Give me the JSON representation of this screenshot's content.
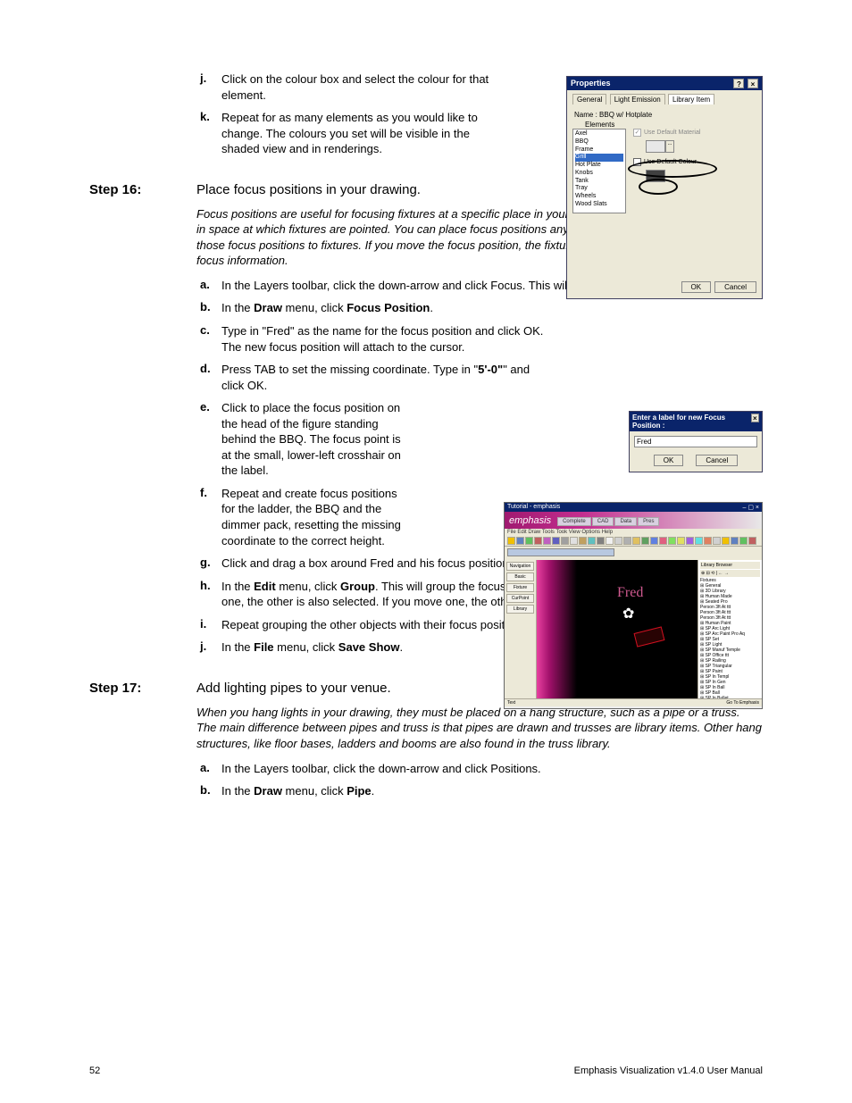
{
  "top_list": [
    {
      "marker": "j.",
      "parts": [
        "Click on the colour box and select the colour for that element."
      ]
    },
    {
      "marker": "k.",
      "parts": [
        "Repeat for as many elements as you would like to change. The colours you set will be visible in the shaded view and in renderings."
      ]
    }
  ],
  "step16": {
    "label": "Step 16:",
    "title": "Place focus positions in your drawing.",
    "intro": "Focus positions are useful for focusing fixtures at a specific place in your plot. A focus position defines a point in space at which fixtures are pointed. You can place focus positions anywhere in your drawing, and assign those focus positions to fixtures. If you move the focus position, the fixtures will automatically update their focus information.",
    "items": [
      {
        "marker": "a.",
        "html": "In the Layers toolbar, click the down-arrow and click Focus. This will set Focus as the current layer."
      },
      {
        "marker": "b.",
        "html": "In the <b>Draw</b> menu, click <b>Focus Position</b>."
      },
      {
        "marker": "c.",
        "html": "Type in \"Fred\" as the name for the focus position and click OK. The new focus position will attach to the cursor."
      },
      {
        "marker": "d.",
        "html": "Press TAB to set the missing coordinate. Type in \"<b>5'-0\"</b>\" and click OK."
      },
      {
        "marker": "e.",
        "html": "Click to place the focus position on the head of the figure standing behind the BBQ. The focus point is at the small, lower-left crosshair on the label."
      },
      {
        "marker": "f.",
        "html": "Repeat and create focus positions for the ladder, the BBQ and the dimmer pack, resetting the missing coordinate to the correct height."
      },
      {
        "marker": "g.",
        "html": "Click and drag a box around Fred and his focus position to select them together."
      },
      {
        "marker": "h.",
        "html": "In the <b>Edit</b> menu, click <b>Group</b>. This will group the focus position and the object together. If you select one, the other is also selected. If you move one, the other will move with it."
      },
      {
        "marker": "i.",
        "html": "Repeat grouping the other objects with their focus positions."
      },
      {
        "marker": "j.",
        "html": "In the <b>File</b> menu, click <b>Save Show</b>."
      }
    ]
  },
  "step17": {
    "label": "Step 17:",
    "title": "Add lighting pipes to your venue.",
    "intro": "When you hang lights in your drawing, they must be placed on a hang structure, such as a pipe or a truss. The main difference between pipes and truss is that pipes are drawn and trusses are library items. Other hang structures, like floor bases, ladders and booms are also found in the truss library.",
    "items": [
      {
        "marker": "a.",
        "html": "In the Layers toolbar, click the down-arrow and click Positions."
      },
      {
        "marker": "b.",
        "html": "In the <b>Draw</b> menu, click <b>Pipe</b>."
      }
    ]
  },
  "footer": {
    "page": "52",
    "doc": "Emphasis Visualization v1.4.0 User Manual"
  },
  "properties": {
    "title": "Properties",
    "tabs": [
      "General",
      "Light Emission",
      "Library Item"
    ],
    "name_label": "Name :",
    "name_value": "BBQ w/ Hotplate",
    "elements_label": "Elements",
    "elements": [
      "Axel",
      "BBQ",
      "Frame",
      "Grill",
      "Hot Plate",
      "Knobs",
      "Tank",
      "Tray",
      "Wheels",
      "Wood Slats"
    ],
    "selected_index": 3,
    "use_default_material": "Use Default Material",
    "use_default_colour": "Use Default Colour",
    "ok": "OK",
    "cancel": "Cancel"
  },
  "focus_dialog": {
    "title": "Enter a label for new Focus Position :",
    "value": "Fred",
    "ok": "OK",
    "cancel": "Cancel"
  },
  "emphasis": {
    "titlebar": "Tutorial - emphasis",
    "logo": "emphasis",
    "tabs": [
      "Complete",
      "CAD",
      "Data",
      "Pres"
    ],
    "menu": "File  Edit  Draw  Tools  Took  View  Options  Help",
    "left_tabs": [
      "Navigation",
      "Basic",
      "Fixture",
      "CurPoint",
      "Library"
    ],
    "fred_label": "Fred",
    "tree_header": "Library Browser",
    "tree": [
      "Fixtures",
      "⊞ General",
      "⊞ 3D Library",
      "  ⊞ Human Made",
      "    ⊞ Seated Pro",
      "      Person 3ft At ttt",
      "      Person 3ft At ttt",
      "      Person 3ft At ttt",
      "  ⊞ Human Paint",
      "⊞ SP Arc Light",
      "⊞ SP Arc Paint Pro Aq",
      "⊞ SP Set",
      "⊞ SP Light",
      "⊞ SP Manuf Temple",
      "⊞ SP Office ttt",
      "⊞ SP Railing",
      "⊞ SP Triangular",
      "⊞ SP Paint",
      "⊞ SP In Templ",
      "⊞ SP In Gen",
      "⊞ SP In Ball",
      "⊞ SP Ball",
      "⊞ SP In Bullet",
      "⊞ SP In Floor",
      "⊞ SP Inst Pro Aq",
      "⊞ SP In Gen",
      "⊞ SP In Set"
    ],
    "palette": [
      "#ff0000",
      "#00a000",
      "#0000ff",
      "#ffff00",
      "#ff8000",
      "#00ffff",
      "#ff00ff",
      "#804000",
      "#0040c0"
    ],
    "status_left": "Text",
    "status_right": "Go To  Emphasis"
  },
  "narrow_c_d": [
    2,
    3
  ],
  "narrow_e_f": [
    4,
    5
  ]
}
